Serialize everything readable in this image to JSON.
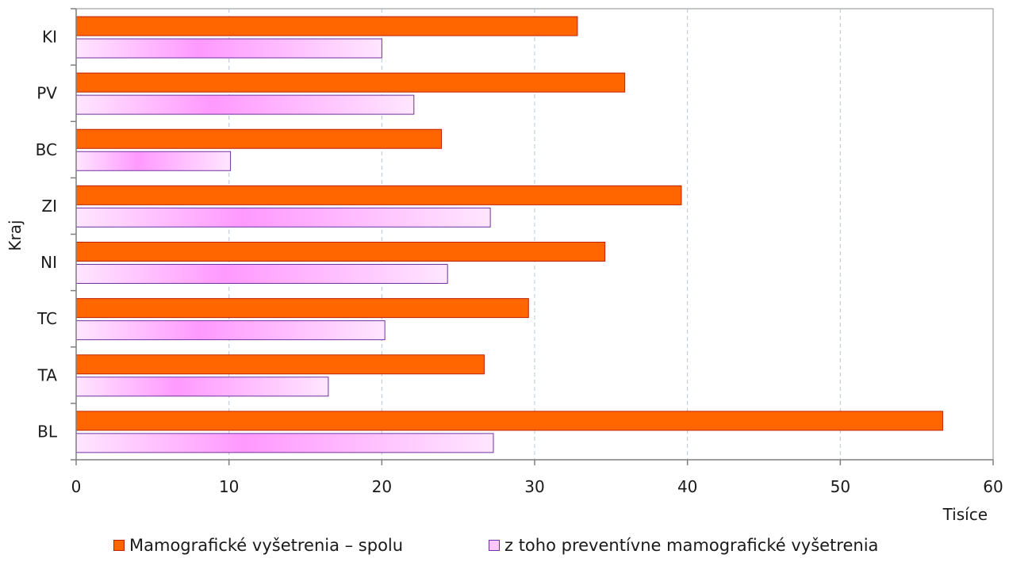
{
  "chart_data": {
    "type": "bar",
    "orientation": "horizontal",
    "categories": [
      "KI",
      "PV",
      "BC",
      "ZI",
      "NI",
      "TC",
      "TA",
      "BL"
    ],
    "series": [
      {
        "name": "Mamografické vyšetrenia – spolu",
        "values": [
          32.8,
          35.9,
          23.9,
          39.6,
          34.6,
          29.6,
          26.7,
          56.7
        ],
        "color": "#ff6600",
        "border": "#c02000"
      },
      {
        "name": "z toho preventívne mamografické vyšetrenia",
        "values": [
          20.0,
          22.1,
          10.1,
          27.1,
          24.3,
          20.2,
          16.5,
          27.3
        ],
        "color": "#ff99ff",
        "border": "#7030a0"
      }
    ],
    "xlim": [
      0,
      60
    ],
    "xticks": [
      "0",
      "10",
      "20",
      "30",
      "40",
      "50",
      "60"
    ],
    "xunit": "Tisíce",
    "ylabel": "Kraj",
    "grid": "vertical dashed",
    "legend_position": "bottom"
  }
}
